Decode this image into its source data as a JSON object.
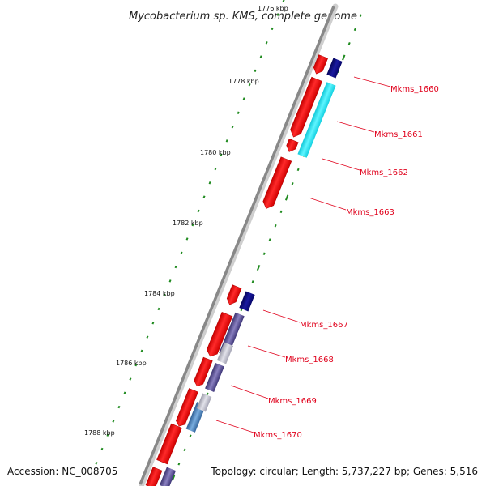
{
  "title": "Mycobacterium sp. KMS, complete genome",
  "footer": {
    "accession": "Accession: NC_008705",
    "topology": "Topology: circular; Length: 5,737,227 bp; Genes: 5,516"
  },
  "ticks": [
    {
      "label": "1776 kbp"
    },
    {
      "label": "1778 kbp"
    },
    {
      "label": "1780 kbp"
    },
    {
      "label": "1782 kbp"
    },
    {
      "label": "1784 kbp"
    },
    {
      "label": "1786 kbp"
    },
    {
      "label": "1788 kbp"
    }
  ],
  "gene_labels": [
    {
      "label": "Mkms_1660"
    },
    {
      "label": "Mkms_1661"
    },
    {
      "label": "Mkms_1662"
    },
    {
      "label": "Mkms_1663"
    },
    {
      "label": "Mkms_1667"
    },
    {
      "label": "Mkms_1668"
    },
    {
      "label": "Mkms_1669"
    },
    {
      "label": "Mkms_1670"
    }
  ],
  "colors": {
    "backbone": "#888888",
    "gene_forward": "#ff0000",
    "feature_navy": "#0a0a80",
    "feature_cyan": "#22e5f5",
    "feature_gray": "#b8b8c8",
    "feature_purple": "#5a5090",
    "feature_steel": "#4a7ab0",
    "tick_green": "#1e8a1e",
    "label_red": "#e0001b"
  }
}
